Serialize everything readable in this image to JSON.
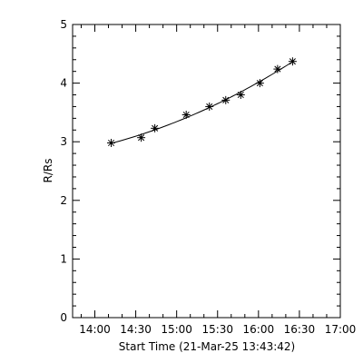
{
  "chart_data": {
    "type": "scatter",
    "title": "",
    "xlabel": "Start Time (21-Mar-25 13:43:42)",
    "ylabel": "R/Rs",
    "xlim": [
      "13:43:42",
      "17:00"
    ],
    "ylim": [
      0,
      5
    ],
    "x_tick_labels": [
      "14:00",
      "14:30",
      "15:00",
      "15:30",
      "16:00",
      "16:30",
      "17:00"
    ],
    "y_tick_labels": [
      "0",
      "1",
      "2",
      "3",
      "4",
      "5"
    ],
    "grid": false,
    "marker": "asterisk",
    "fit_line": "quadratic",
    "series": [
      {
        "x": [
          "14:12",
          "14:34",
          "14:44",
          "15:07",
          "15:24",
          "15:36",
          "15:47",
          "16:01",
          "16:14",
          "16:25"
        ],
        "y": [
          2.98,
          3.07,
          3.23,
          3.46,
          3.6,
          3.71,
          3.8,
          4.0,
          4.24,
          4.37
        ]
      }
    ]
  }
}
